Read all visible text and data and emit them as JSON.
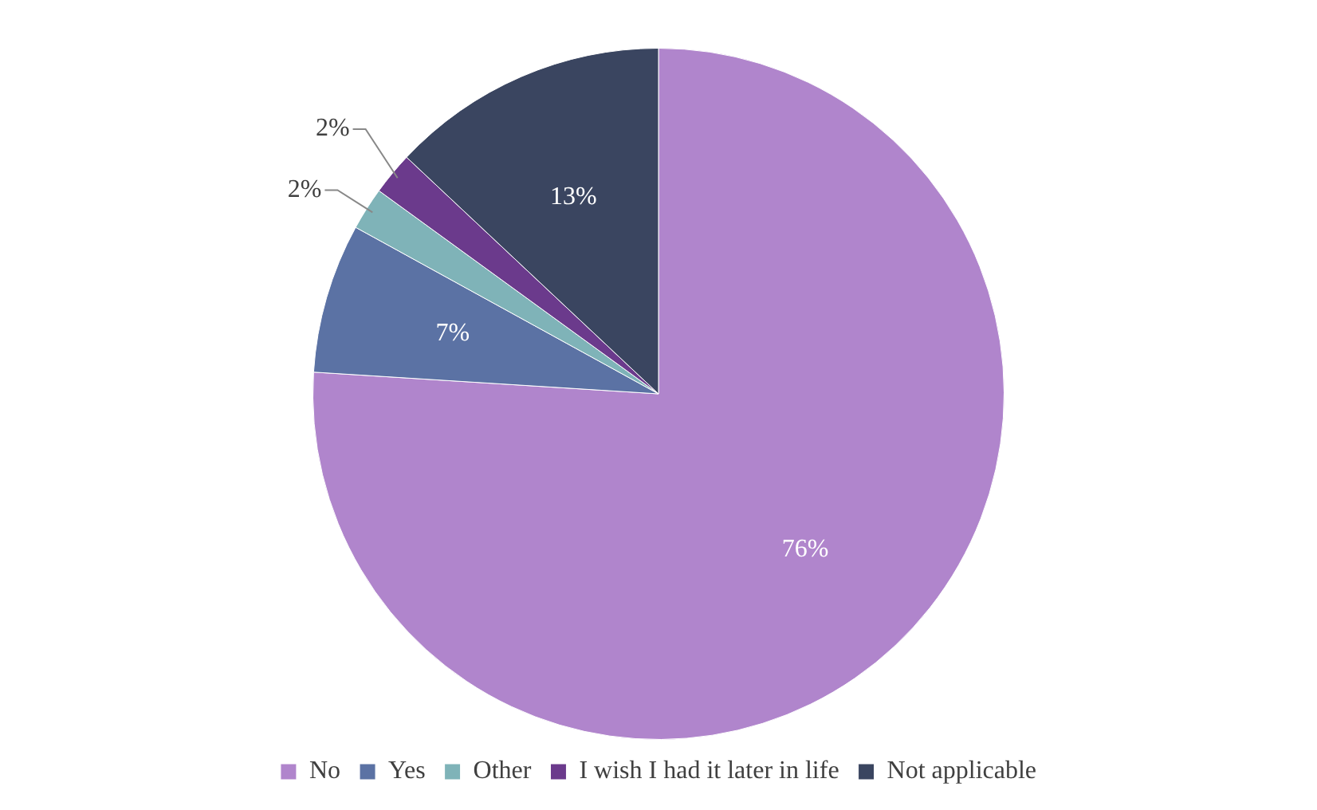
{
  "chart_data": {
    "type": "pie",
    "categories": [
      "No",
      "Yes",
      "Other",
      "I wish I had it later in life",
      "Not applicable"
    ],
    "values": [
      76,
      7,
      2,
      2,
      13
    ],
    "colors": [
      "#b085cc",
      "#5b72a4",
      "#7fb3b8",
      "#6b3a8c",
      "#3a4560"
    ],
    "value_labels": [
      "76%",
      "7%",
      "2%",
      "2%",
      "13%"
    ],
    "legend": "bottom"
  }
}
